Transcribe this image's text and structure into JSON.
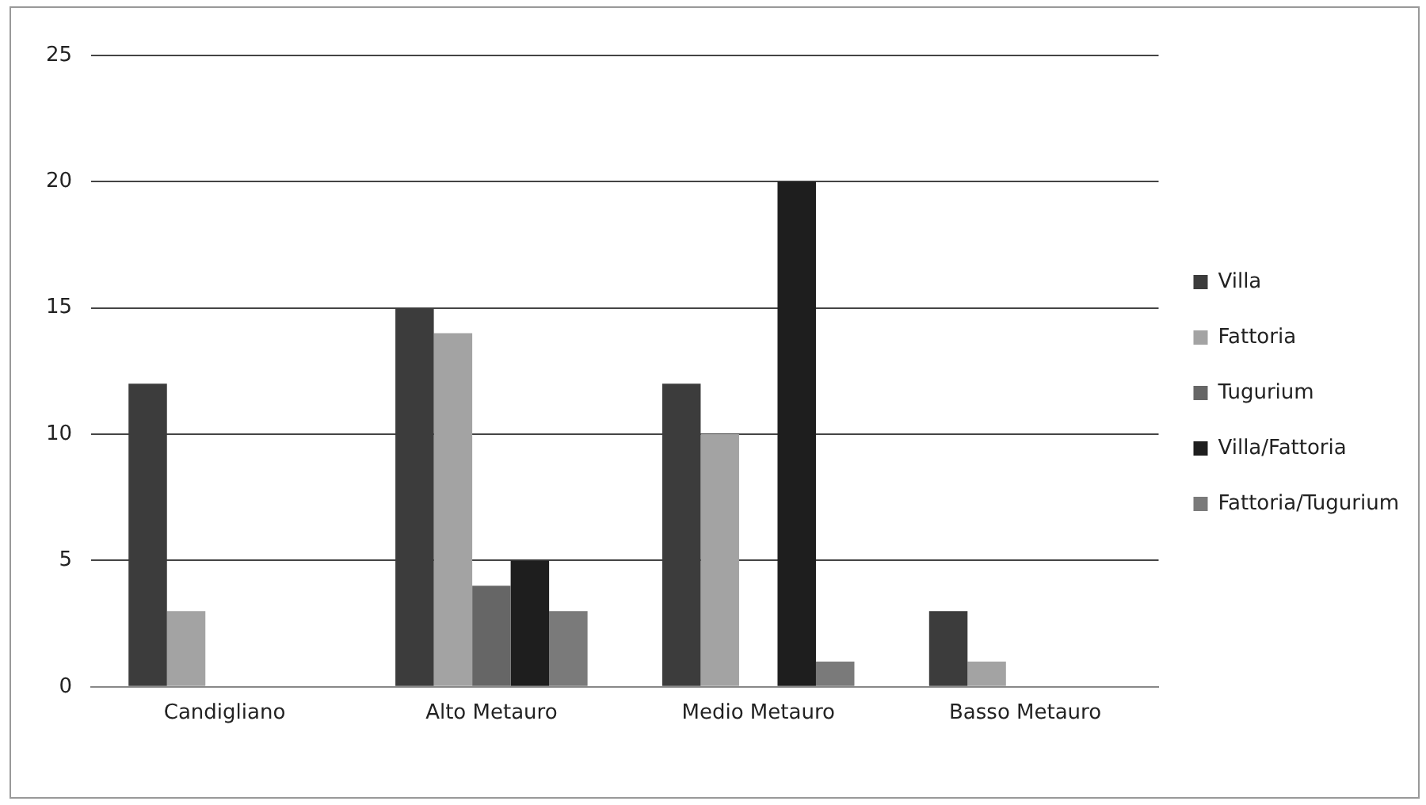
{
  "chart_data": {
    "type": "bar",
    "categories": [
      "Candigliano",
      "Alto Metauro",
      "Medio Metauro",
      "Basso Metauro"
    ],
    "series": [
      {
        "name": "Villa",
        "color": "#3c3c3c",
        "values": [
          12,
          15,
          12,
          3
        ]
      },
      {
        "name": "Fattoria",
        "color": "#a3a3a3",
        "values": [
          3,
          14,
          10,
          1
        ]
      },
      {
        "name": "Tugurium",
        "color": "#666666",
        "values": [
          0,
          4,
          0,
          0
        ]
      },
      {
        "name": "Villa/Fattoria",
        "color": "#1e1e1e",
        "values": [
          0,
          5,
          20,
          0
        ]
      },
      {
        "name": "Fattoria/Tugurium",
        "color": "#7a7a7a",
        "values": [
          0,
          3,
          1,
          0
        ]
      }
    ],
    "ylim": [
      0,
      25
    ],
    "yticks": [
      0,
      5,
      10,
      15,
      20,
      25
    ],
    "grid": "y",
    "legend": "right"
  }
}
